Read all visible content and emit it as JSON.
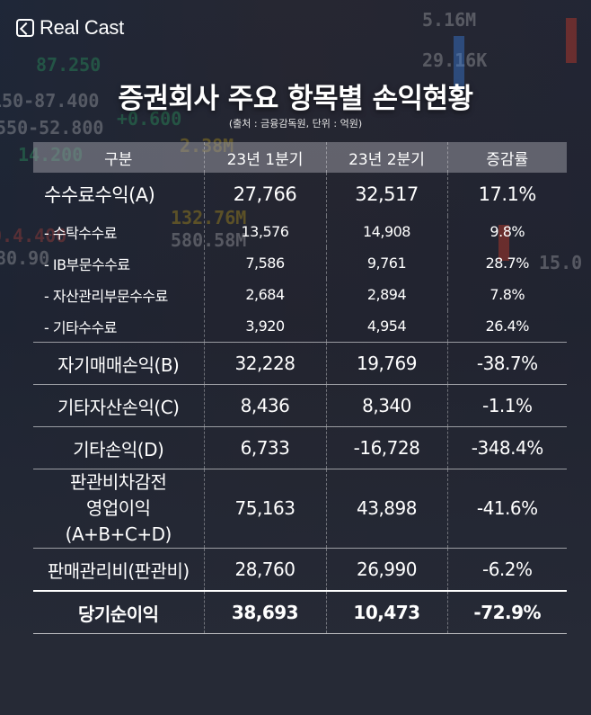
{
  "brand": {
    "name": "Real Cast"
  },
  "title": "증권회사 주요 항목별 손익현황",
  "source": "(출처 : 금융감독원, 단위 : 억원)",
  "table": {
    "headers": [
      "구분",
      "23년 1분기",
      "23년 2분기",
      "증감률"
    ],
    "rows": [
      {
        "label": "수수료수익(A)",
        "q1": "27,766",
        "q2": "32,517",
        "rate": "17.1%"
      },
      {
        "label": "- 수탁수수료",
        "q1": "13,576",
        "q2": "14,908",
        "rate": "9.8%"
      },
      {
        "label": "- IB부문수수료",
        "q1": "7,586",
        "q2": "9,761",
        "rate": "28.7%"
      },
      {
        "label": "- 자산관리부문수수료",
        "q1": "2,684",
        "q2": "2,894",
        "rate": "7.8%"
      },
      {
        "label": "- 기타수수료",
        "q1": "3,920",
        "q2": "4,954",
        "rate": "26.4%"
      },
      {
        "label": "자기매매손익(B)",
        "q1": "32,228",
        "q2": "19,769",
        "rate": "-38.7%"
      },
      {
        "label": "기타자산손익(C)",
        "q1": "8,436",
        "q2": "8,340",
        "rate": "-1.1%"
      },
      {
        "label": "기타손익(D)",
        "q1": "6,733",
        "q2": "-16,728",
        "rate": "-348.4%"
      },
      {
        "label_line1": "판관비차감전",
        "label_line2": "영업이익(A+B+C+D)",
        "q1": "75,163",
        "q2": "43,898",
        "rate": "-41.6%"
      },
      {
        "label": "판매관리비(판관비)",
        "q1": "28,760",
        "q2": "26,990",
        "rate": "-6.2%"
      },
      {
        "label": "당기순이익",
        "q1": "38,693",
        "q2": "10,473",
        "rate": "-72.9%"
      }
    ]
  },
  "colors": {
    "background": "#262a36",
    "header_band": "#8a8b93",
    "text": "#ffffff"
  }
}
